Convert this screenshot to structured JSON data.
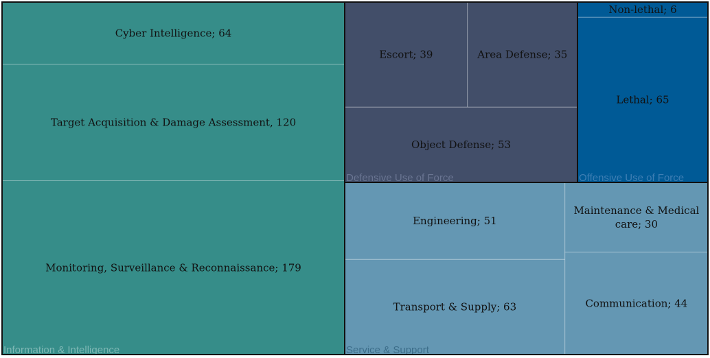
{
  "chart_data": {
    "type": "treemap",
    "groups": [
      {
        "name": "Information & Intelligence",
        "color": "#368d89",
        "label_color": "#7fb8b5",
        "items": [
          {
            "label": "Cyber Intelligence; 64",
            "name": "Cyber Intelligence",
            "value": 64
          },
          {
            "label": "Target Acquisition & Damage Assessment, 120",
            "name": "Target Acquisition & Damage Assessment",
            "value": 120
          },
          {
            "label": "Monitoring, Surveillance & Reconnaissance; 179",
            "name": "Monitoring, Surveillance & Reconnaissance",
            "value": 179
          }
        ]
      },
      {
        "name": "Defensive Use of Force",
        "color": "#424e69",
        "label_color": "#6a7592",
        "items": [
          {
            "label": "Escort; 39",
            "name": "Escort",
            "value": 39
          },
          {
            "label": "Area Defense; 35",
            "name": "Area Defense",
            "value": 35
          },
          {
            "label": "Object Defense; 53",
            "name": "Object Defense",
            "value": 53
          }
        ]
      },
      {
        "name": "Offensive Use of Force",
        "color": "#005a96",
        "label_color": "#3f7fb4",
        "items": [
          {
            "label": "Non-lethal; 6",
            "name": "Non-lethal",
            "value": 6
          },
          {
            "label": "Lethal; 65",
            "name": "Lethal",
            "value": 65
          }
        ]
      },
      {
        "name": "Service & Support",
        "color": "#6497b3",
        "label_color": "#3d6e8a",
        "items": [
          {
            "label": "Engineering; 51",
            "name": "Engineering",
            "value": 51
          },
          {
            "label": "Transport & Supply; 63",
            "name": "Transport & Supply",
            "value": 63
          },
          {
            "label": "Maintenance & Medical care; 30",
            "name": "Maintenance & Medical care",
            "value": 30
          },
          {
            "label": "Communication; 44",
            "name": "Communication",
            "value": 44
          }
        ]
      }
    ]
  }
}
